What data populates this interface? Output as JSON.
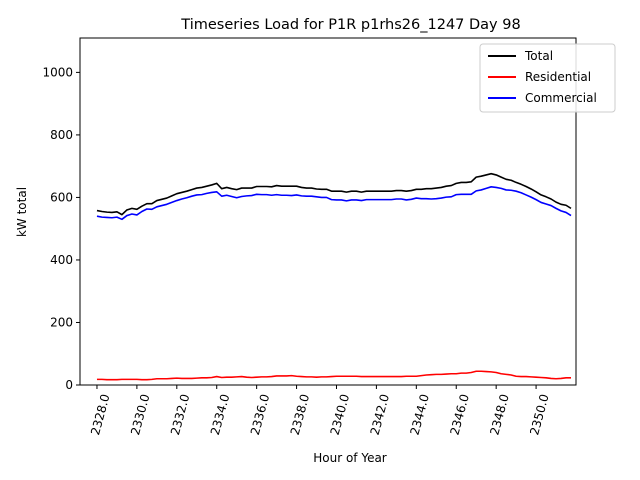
{
  "chart_data": {
    "type": "line",
    "title": "Timeseries Load for P1R p1rhs26_1247  Day 98",
    "xlabel": "Hour of Year",
    "ylabel": "kW total",
    "xlim": [
      2327.15,
      2352.0
    ],
    "ylim": [
      0,
      1110
    ],
    "xticks": [
      2328,
      2330,
      2332,
      2334,
      2336,
      2338,
      2340,
      2342,
      2344,
      2346,
      2348,
      2350
    ],
    "xtick_labels": [
      "2328.0",
      "2330.0",
      "2332.0",
      "2334.0",
      "2336.0",
      "2338.0",
      "2340.0",
      "2342.0",
      "2344.0",
      "2346.0",
      "2348.0",
      "2350.0"
    ],
    "yticks": [
      0,
      200,
      400,
      600,
      800,
      1000
    ],
    "ytick_labels": [
      "0",
      "200",
      "400",
      "600",
      "800",
      "1000"
    ],
    "legend_position": "top-right",
    "x": [
      2328.0,
      2328.25,
      2328.5,
      2328.75,
      2329.0,
      2329.25,
      2329.5,
      2329.75,
      2330.0,
      2330.25,
      2330.5,
      2330.75,
      2331.0,
      2331.25,
      2331.5,
      2331.75,
      2332.0,
      2332.25,
      2332.5,
      2332.75,
      2333.0,
      2333.25,
      2333.5,
      2333.75,
      2334.0,
      2334.25,
      2334.5,
      2334.75,
      2335.0,
      2335.25,
      2335.5,
      2335.75,
      2336.0,
      2336.25,
      2336.5,
      2336.75,
      2337.0,
      2337.25,
      2337.5,
      2337.75,
      2338.0,
      2338.25,
      2338.5,
      2338.75,
      2339.0,
      2339.25,
      2339.5,
      2339.75,
      2340.0,
      2340.25,
      2340.5,
      2340.75,
      2341.0,
      2341.25,
      2341.5,
      2341.75,
      2342.0,
      2342.25,
      2342.5,
      2342.75,
      2343.0,
      2343.25,
      2343.5,
      2343.75,
      2344.0,
      2344.25,
      2344.5,
      2344.75,
      2345.0,
      2345.25,
      2345.5,
      2345.75,
      2346.0,
      2346.25,
      2346.5,
      2346.75,
      2347.0,
      2347.25,
      2347.5,
      2347.75,
      2348.0,
      2348.25,
      2348.5,
      2348.75,
      2349.0,
      2349.25,
      2349.5,
      2349.75,
      2350.0,
      2350.25,
      2350.5,
      2350.75,
      2351.0,
      2351.25,
      2351.5,
      2351.75
    ],
    "series": [
      {
        "name": "Total",
        "color": "#000000",
        "values": [
          558,
          555,
          553,
          552,
          554,
          545,
          560,
          565,
          562,
          572,
          580,
          580,
          590,
          594,
          598,
          605,
          612,
          616,
          620,
          625,
          630,
          632,
          636,
          640,
          645,
          628,
          632,
          628,
          625,
          630,
          630,
          630,
          635,
          635,
          635,
          634,
          638,
          636,
          636,
          636,
          636,
          632,
          630,
          630,
          627,
          626,
          626,
          620,
          620,
          620,
          617,
          620,
          620,
          617,
          620,
          620,
          620,
          620,
          620,
          620,
          622,
          622,
          620,
          622,
          626,
          626,
          628,
          628,
          630,
          632,
          636,
          638,
          645,
          648,
          648,
          650,
          665,
          668,
          672,
          676,
          672,
          665,
          658,
          655,
          648,
          642,
          635,
          627,
          618,
          608,
          602,
          595,
          585,
          578,
          575,
          565
        ]
      },
      {
        "name": "Residential",
        "color": "#ff0000",
        "values": [
          18,
          18,
          17,
          17,
          17,
          18,
          18,
          18,
          18,
          17,
          17,
          18,
          20,
          20,
          20,
          21,
          22,
          21,
          21,
          21,
          22,
          23,
          23,
          24,
          27,
          24,
          25,
          25,
          26,
          27,
          25,
          24,
          25,
          26,
          26,
          27,
          29,
          29,
          29,
          30,
          28,
          27,
          26,
          26,
          25,
          26,
          26,
          27,
          28,
          28,
          28,
          28,
          28,
          27,
          27,
          27,
          27,
          27,
          27,
          27,
          27,
          27,
          28,
          28,
          28,
          30,
          32,
          33,
          34,
          34,
          35,
          36,
          36,
          38,
          38,
          40,
          44,
          44,
          43,
          42,
          40,
          36,
          34,
          32,
          28,
          27,
          27,
          26,
          25,
          24,
          23,
          21,
          20,
          21,
          23,
          23
        ]
      },
      {
        "name": "Commercial",
        "color": "#0000ff",
        "values": [
          540,
          537,
          536,
          535,
          537,
          530,
          542,
          547,
          544,
          555,
          563,
          562,
          570,
          574,
          578,
          584,
          590,
          595,
          599,
          604,
          608,
          609,
          613,
          616,
          618,
          604,
          607,
          603,
          599,
          603,
          605,
          606,
          610,
          609,
          609,
          607,
          609,
          607,
          607,
          606,
          608,
          605,
          604,
          604,
          602,
          600,
          600,
          593,
          592,
          592,
          589,
          592,
          592,
          590,
          593,
          593,
          593,
          593,
          593,
          593,
          595,
          595,
          592,
          594,
          598,
          596,
          596,
          595,
          596,
          598,
          601,
          602,
          609,
          610,
          610,
          610,
          621,
          624,
          629,
          634,
          632,
          629,
          624,
          623,
          620,
          615,
          608,
          601,
          593,
          584,
          579,
          574,
          565,
          557,
          552,
          542
        ]
      }
    ]
  }
}
